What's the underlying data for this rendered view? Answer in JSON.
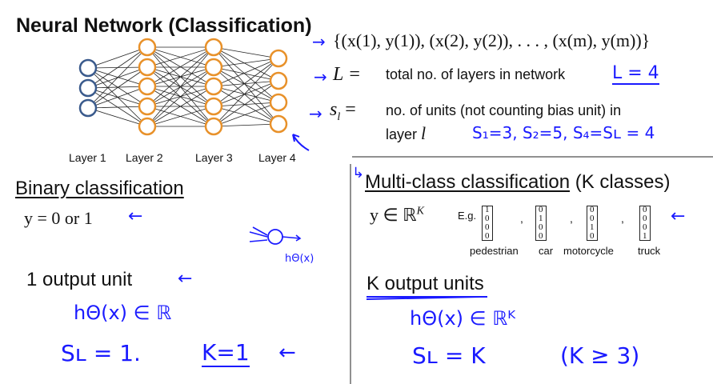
{
  "title": "Neural Network (Classification)",
  "training_set": "{(x(1), y(1)), (x(2), y(2)), . . . , (x(m), y(m))}",
  "L_symbol": "L =",
  "L_desc": "total no. of layers in network",
  "L_note": "L = 4",
  "s_symbol": "s",
  "s_sub": "l",
  "s_eq": "=",
  "s_desc_line1": "no. of units (not counting bias unit) in",
  "s_desc_line2": "layer",
  "s_desc_var": "l",
  "s_note": "S₁=3,  S₂=5,  S₄=Sʟ = 4",
  "network": {
    "layers": [
      3,
      5,
      5,
      4
    ],
    "layer_labels": [
      "Layer 1",
      "Layer 2",
      "Layer 3",
      "Layer 4"
    ],
    "input_color": "#3a5a8c",
    "hidden_color": "#e8912a"
  },
  "binary": {
    "heading": "Binary classification",
    "equation": "y = 0 or 1",
    "output_heading": "1 output unit",
    "note_h": "hΘ(x) ∈ ℝ",
    "note_sl": "Sʟ = 1.",
    "note_k": "K=1",
    "neuron_note": "hΘ(x)"
  },
  "multi": {
    "heading_underlined": "Multi-class classification",
    "heading_rest": " (K classes)",
    "equation": "y ∈ ℝ",
    "equation_sup": "K",
    "eg": "E.g.",
    "vectors": [
      {
        "values": [
          "1",
          "0",
          "0",
          "0"
        ],
        "label": "pedestrian"
      },
      {
        "values": [
          "0",
          "1",
          "0",
          "0"
        ],
        "label": "car"
      },
      {
        "values": [
          "0",
          "0",
          "1",
          "0"
        ],
        "label": "motorcycle"
      },
      {
        "values": [
          "0",
          "0",
          "0",
          "1"
        ],
        "label": "truck"
      }
    ],
    "output_heading": "K output units",
    "note_h": "hΘ(x) ∈ ℝᴷ",
    "note_sl": "Sʟ = K",
    "note_k": "(K ≥ 3)"
  },
  "ink_color": "#1a1aff"
}
